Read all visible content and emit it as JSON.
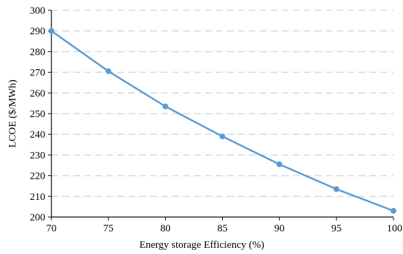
{
  "chart_data": {
    "type": "line",
    "title": "",
    "xlabel": "Energy storage Efficiency (%)",
    "ylabel": "LCOE ($/MWh)",
    "x": [
      70,
      75,
      80,
      85,
      90,
      95,
      100
    ],
    "series": [
      {
        "values": [
          290,
          270.5,
          253.5,
          239,
          225.5,
          213.5,
          203
        ],
        "color": "#5b9bd5"
      }
    ],
    "xlim": [
      70,
      100
    ],
    "ylim": [
      200,
      300
    ],
    "xticks": [
      70,
      75,
      80,
      85,
      90,
      95,
      100
    ],
    "yticks": [
      200,
      210,
      220,
      230,
      240,
      250,
      260,
      270,
      280,
      290,
      300
    ],
    "grid": "horizontal dashed",
    "grid_color": "#d9d9d9",
    "legend": "none"
  }
}
